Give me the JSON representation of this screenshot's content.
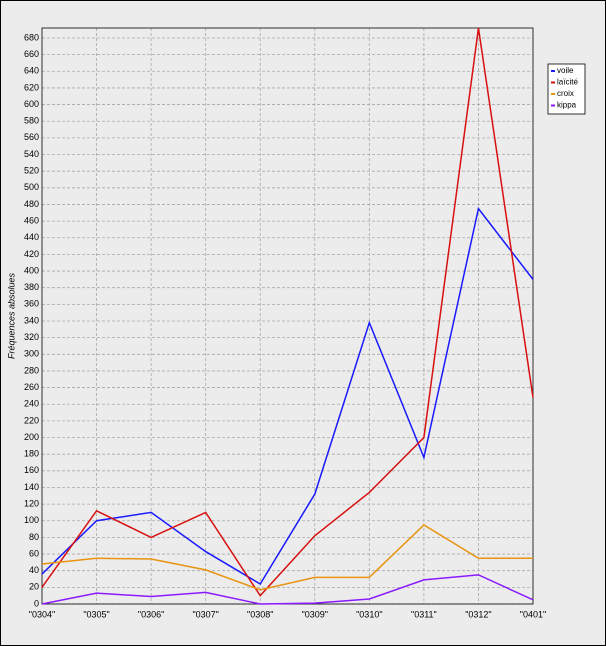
{
  "chart_data": {
    "type": "line",
    "y_label": "Fréquences absolues",
    "categories": [
      "\"0304\"",
      "\"0305\"",
      "\"0306\"",
      "\"0307\"",
      "\"0308\"",
      "\"0309\"",
      "\"0310\"",
      "\"0311\"",
      "\"0312\"",
      "\"0401\""
    ],
    "series": [
      {
        "name": "voile",
        "color": "#1a1aff",
        "values": [
          36,
          100,
          110,
          63,
          24,
          132,
          338,
          176,
          475,
          390
        ]
      },
      {
        "name": "laïcité",
        "color": "#d81010",
        "values": [
          20,
          112,
          80,
          110,
          10,
          82,
          134,
          200,
          692,
          248
        ]
      },
      {
        "name": "croix",
        "color": "#e89410",
        "values": [
          48,
          55,
          54,
          41,
          17,
          32,
          32,
          95,
          55,
          55
        ]
      },
      {
        "name": "kippa",
        "color": "#8a1aff",
        "values": [
          0,
          13,
          9,
          14,
          0,
          1,
          6,
          29,
          35,
          5
        ]
      }
    ],
    "ylim": [
      0,
      692
    ],
    "yticks": [
      0,
      20,
      40,
      60,
      80,
      100,
      120,
      140,
      160,
      180,
      200,
      220,
      240,
      260,
      280,
      300,
      320,
      340,
      360,
      380,
      400,
      420,
      440,
      460,
      480,
      500,
      520,
      540,
      560,
      580,
      600,
      620,
      640,
      660,
      680
    ],
    "grid": true,
    "legend": "right"
  }
}
